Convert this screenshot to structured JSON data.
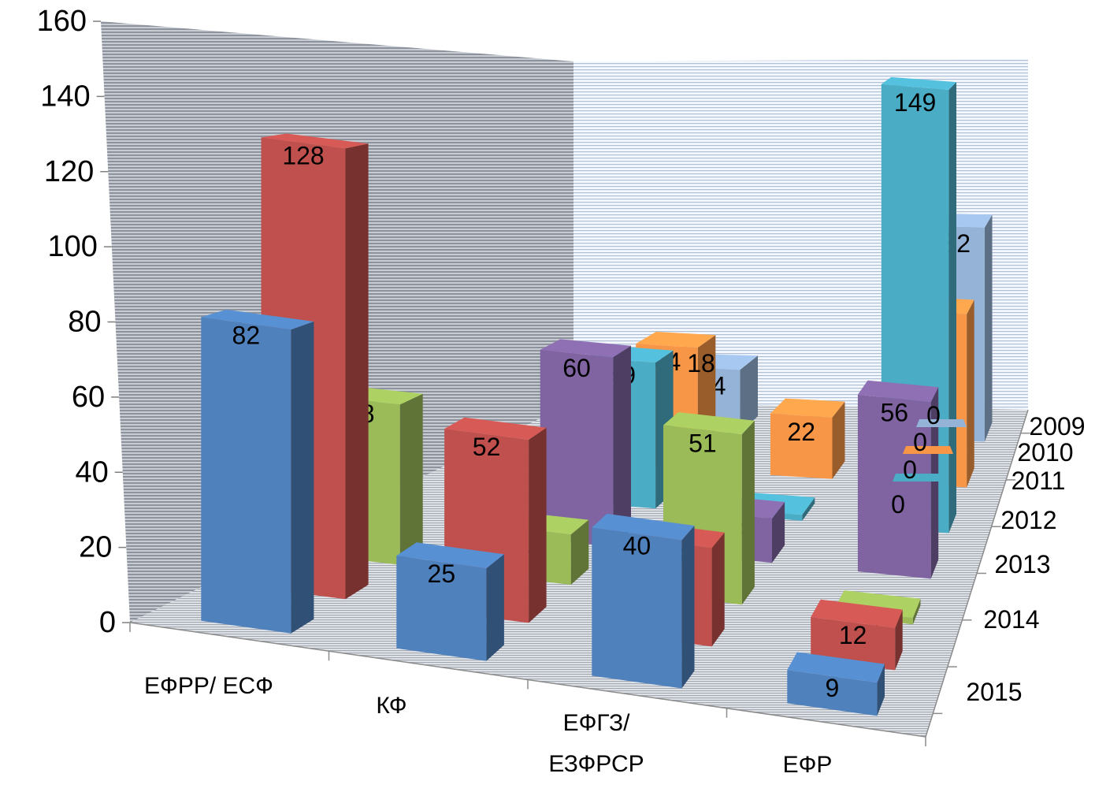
{
  "chart_data": {
    "type": "bar",
    "subtype": "3d-clustered",
    "title": "",
    "xlabel": "",
    "ylabel": "",
    "ylim": [
      0,
      160
    ],
    "y_ticks": [
      "0",
      "20",
      "40",
      "60",
      "80",
      "100",
      "120",
      "140",
      "160"
    ],
    "categories": [
      "ЕФРР/ ЕСФ",
      "КФ",
      "ЕФГЗ/ ЕЗФРСР",
      "ЕФР"
    ],
    "category_lines": [
      [
        "ЕФРР/ ЕСФ"
      ],
      [
        "КФ"
      ],
      [
        "ЕФГЗ/",
        "ЕЗФРСР"
      ],
      [
        "ЕФР"
      ]
    ],
    "depth_labels": [
      "2009",
      "2010",
      "2011",
      "2012",
      "2013",
      "2014",
      "2015"
    ],
    "series": [
      {
        "name": "2009",
        "color": "#95b3d7",
        "values": [
          null,
          24,
          null,
          82
        ],
        "labels": [
          "",
          "24",
          "",
          "82"
        ]
      },
      {
        "name": "2010",
        "color": "#f79646",
        "values": [
          null,
          44,
          22,
          62
        ],
        "labels": [
          "",
          "44",
          "22",
          "62"
        ]
      },
      {
        "name": "2011",
        "color": "#4bacc6",
        "values": [
          null,
          49,
          2,
          149
        ],
        "labels": [
          "",
          "49",
          "2",
          "149"
        ]
      },
      {
        "name": "2012",
        "color": "#8064a2",
        "values": [
          null,
          60,
          14,
          56
        ],
        "labels": [
          "",
          "60",
          "14",
          "56"
        ]
      },
      {
        "name": "2013",
        "color": "#9bbb59",
        "values": [
          48,
          15,
          51,
          2
        ],
        "labels": [
          "48",
          "15",
          "51",
          "2"
        ]
      },
      {
        "name": "2014",
        "color": "#c0504d",
        "values": [
          128,
          52,
          28,
          12
        ],
        "labels": [
          "128",
          "52",
          "28",
          "12"
        ]
      },
      {
        "name": "2015",
        "color": "#4f81bd",
        "values": [
          82,
          25,
          40,
          9
        ],
        "labels": [
          "82",
          "25",
          "40",
          "9"
        ]
      }
    ],
    "zero_labels": {
      "2009": "0",
      "2010": "0",
      "2011": "0",
      "2012": "0"
    },
    "extra_labels": [
      "18"
    ],
    "grid": true,
    "legend": "none"
  }
}
